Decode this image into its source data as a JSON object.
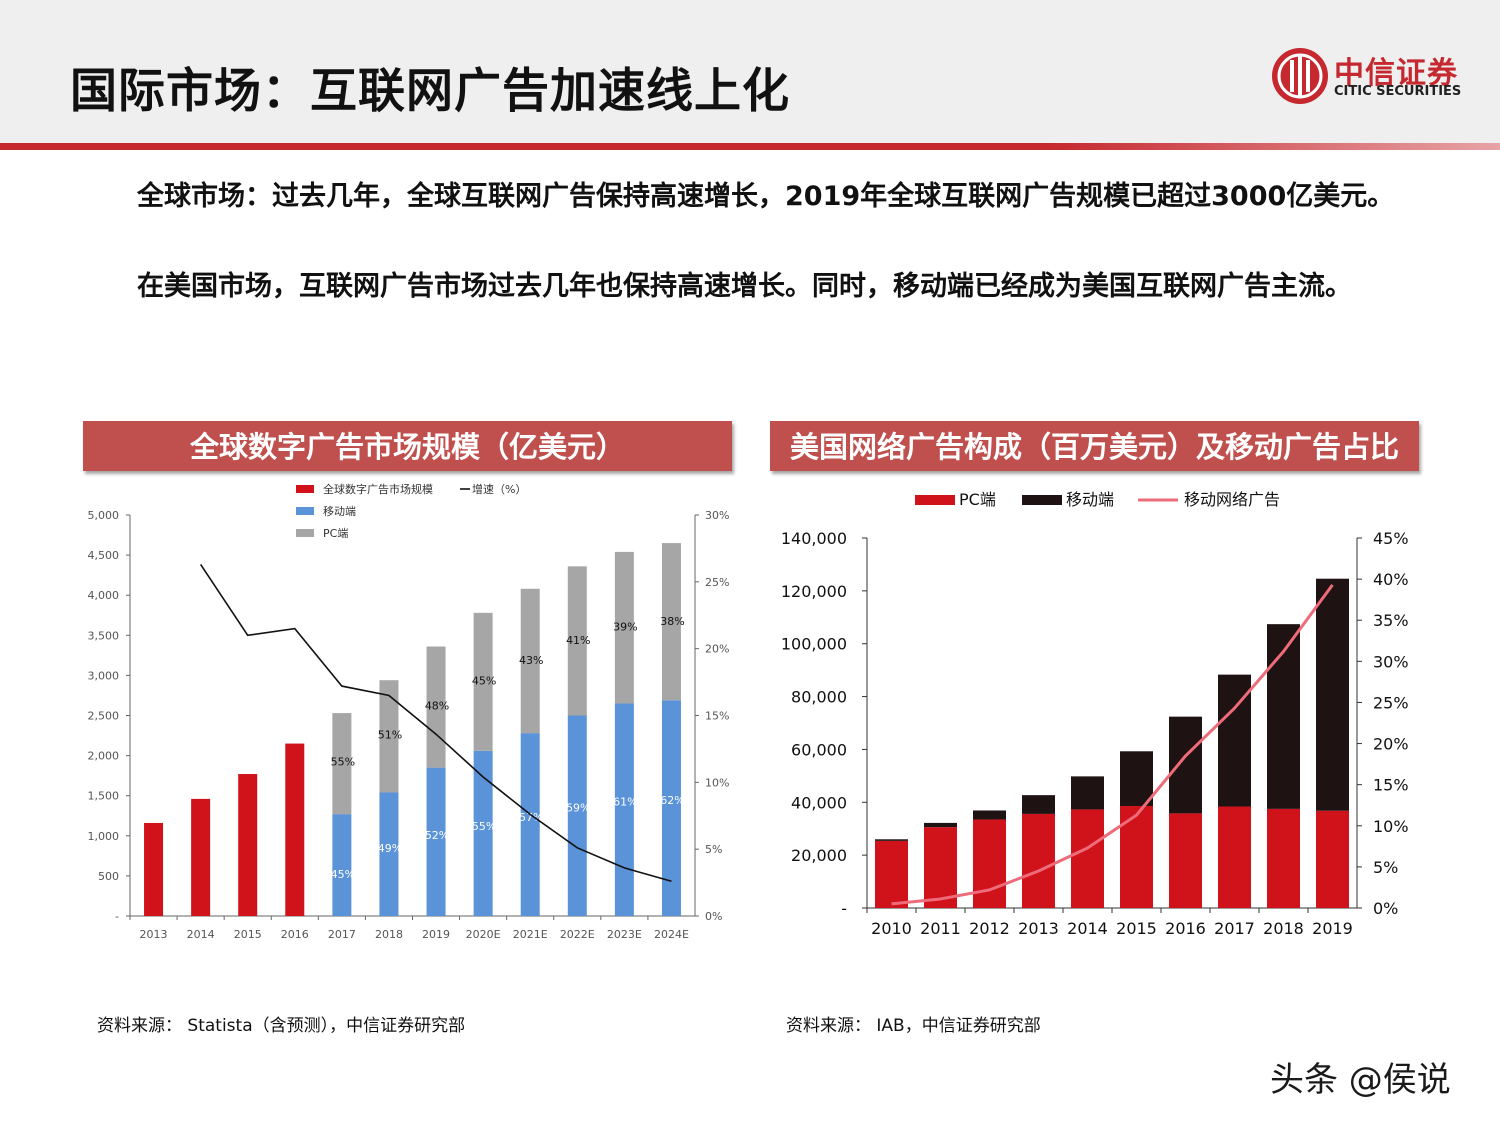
{
  "header": {
    "title": "国际市场：互联网广告加速线上化"
  },
  "logo": {
    "name_cn": "中信证券",
    "name_en": "CITIC SECURITIES"
  },
  "paragraphs": [
    "全球市场：过去几年，全球互联网广告保持高速增长，2019年全球互联网广告规模已超过3000亿美元。",
    "在美国市场，互联网广告市场过去几年也保持高速增长。同时，移动端已经成为美国互联网广告主流。"
  ],
  "panels": {
    "left": {
      "title": "全球数字广告市场规模（亿美元）",
      "source": "资料来源： Statista（含预测），中信证券研究部"
    },
    "right": {
      "title": "美国网络广告构成（百万美元）及移动广告占比",
      "source": "资料来源： IAB，中信证券研究部"
    }
  },
  "watermark": "头条 @侯说",
  "colors": {
    "brand_red": "#c5292f",
    "panel_red": "#c0504d",
    "bar_red": "#d0121b",
    "bar_blue": "#5b93d8",
    "bar_gray": "#a6a6a6",
    "bar_black": "#1e1212",
    "line_pink": "#ee6b79"
  },
  "chart_data": [
    {
      "type": "bar",
      "categories": [
        "2013",
        "2014",
        "2015",
        "2016",
        "2017",
        "2018",
        "2019",
        "2020E",
        "2021E",
        "2022E",
        "2023E",
        "2024E"
      ],
      "series": [
        {
          "name": "全球数字广告市场规模",
          "values": [
            1160,
            1460,
            1770,
            2150,
            null,
            null,
            null,
            null,
            null,
            null,
            null,
            null
          ]
        },
        {
          "name": "移动端",
          "values": [
            null,
            null,
            null,
            null,
            1270,
            1540,
            1850,
            2060,
            2280,
            2500,
            2650,
            2690
          ]
        },
        {
          "name": "PC端",
          "values": [
            null,
            null,
            null,
            null,
            1260,
            1400,
            1510,
            1720,
            1800,
            1860,
            1890,
            1960
          ]
        },
        {
          "name": "增速（%）",
          "axis": "right",
          "values": [
            null,
            26.3,
            21.0,
            21.5,
            17.2,
            16.5,
            13.6,
            10.4,
            7.6,
            5.1,
            3.6,
            2.6
          ]
        }
      ],
      "mobile_share_labels": [
        "45%",
        "49%",
        "52%",
        "55%",
        "57%",
        "59%",
        "61%",
        "62%"
      ],
      "pc_share_labels": [
        "55%",
        "51%",
        "48%",
        "45%",
        "43%",
        "41%",
        "39%",
        "38%"
      ],
      "yaxis_left": {
        "ylim": [
          0,
          5000
        ],
        "ticks": [
          "-",
          "500",
          "1,000",
          "1,500",
          "2,000",
          "2,500",
          "3,000",
          "3,500",
          "4,000",
          "4,500",
          "5,000"
        ]
      },
      "yaxis_right": {
        "ylim": [
          0,
          30
        ],
        "ticks": [
          "0%",
          "5%",
          "10%",
          "15%",
          "20%",
          "25%",
          "30%"
        ]
      },
      "legend": [
        "全球数字广告市场规模",
        "增速（%）",
        "移动端",
        "PC端"
      ],
      "legend_position": "top"
    },
    {
      "type": "bar",
      "categories": [
        "2010",
        "2011",
        "2012",
        "2013",
        "2014",
        "2015",
        "2016",
        "2017",
        "2018",
        "2019"
      ],
      "series": [
        {
          "name": "PC端",
          "values": [
            25400,
            30600,
            33500,
            35600,
            37300,
            38600,
            35800,
            38400,
            37500,
            36800
          ]
        },
        {
          "name": "移动端",
          "values": [
            600,
            1600,
            3400,
            7100,
            12500,
            20700,
            36600,
            49900,
            69900,
            87800
          ]
        },
        {
          "name": "移动网络广告",
          "axis": "right",
          "values": [
            0.5,
            1.1,
            2.2,
            4.5,
            7.3,
            11.3,
            18.5,
            24.3,
            31.2,
            39.3
          ]
        }
      ],
      "yaxis_left": {
        "ylim": [
          0,
          140000
        ],
        "ticks": [
          "-",
          "20,000",
          "40,000",
          "60,000",
          "80,000",
          "100,000",
          "120,000",
          "140,000"
        ]
      },
      "yaxis_right": {
        "ylim": [
          0,
          45
        ],
        "ticks": [
          "0%",
          "5%",
          "10%",
          "15%",
          "20%",
          "25%",
          "30%",
          "35%",
          "40%",
          "45%"
        ]
      },
      "legend": [
        "PC端",
        "移动端",
        "移动网络广告"
      ],
      "legend_position": "top"
    }
  ]
}
